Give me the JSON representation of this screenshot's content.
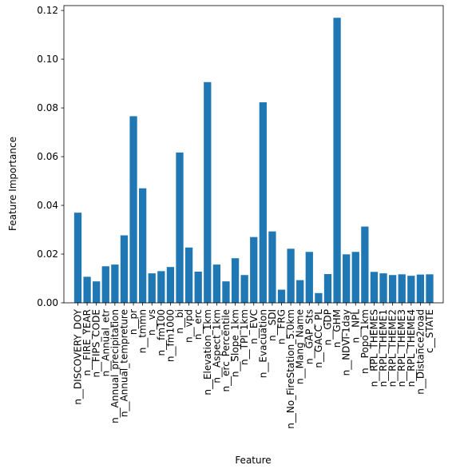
{
  "chart_data": {
    "type": "bar",
    "title": "",
    "xlabel": "Feature",
    "ylabel": "Feature Importance",
    "ylim": [
      0,
      0.122
    ],
    "yticks": [
      "0.00",
      "0.02",
      "0.04",
      "0.06",
      "0.08",
      "0.10",
      "0.12"
    ],
    "bar_color": "#1f77b4",
    "grid": false,
    "categories": [
      "n__DISCOVERY_DOY",
      "n__FIRE_YEAR",
      "n__FIPS_CODE",
      "n__Annual_etr",
      "n__Annual_precipitation",
      "n__Annual_tempreture",
      "n__pr",
      "n__tmmn",
      "n__vs",
      "n__fm100",
      "n__fm1000",
      "n__bi",
      "n__vpd",
      "n__erc",
      "n__Elevation_1km",
      "n__Aspect_1km",
      "n__erc_Percentile",
      "n__Slope_1km",
      "n__TPI_1km",
      "n__EVC",
      "n__Evacuation",
      "n__SDI",
      "n__FRG",
      "n__No_FireStation_5.0km",
      "n__Mang_Name",
      "n__GAP_Sts",
      "n__GACC_PL",
      "n__GDP",
      "n__GHM",
      "n__NDVI-1day",
      "n__NPL",
      "n__Popo_1km",
      "n__RPL_THEMES",
      "n__RPL_THEME1",
      "n__RPL_THEME2",
      "n__RPL_THEME3",
      "n__RPL_THEME4",
      "n__Distance2road",
      "c__STATE"
    ],
    "values": [
      0.037,
      0.0107,
      0.0088,
      0.015,
      0.0157,
      0.0277,
      0.0766,
      0.047,
      0.0121,
      0.013,
      0.0147,
      0.0617,
      0.0227,
      0.0128,
      0.0906,
      0.0157,
      0.0088,
      0.0183,
      0.0114,
      0.027,
      0.0823,
      0.0293,
      0.0054,
      0.0222,
      0.0093,
      0.0209,
      0.004,
      0.0118,
      0.117,
      0.0199,
      0.0209,
      0.0313,
      0.0127,
      0.0121,
      0.0114,
      0.0117,
      0.0111,
      0.0116,
      0.0117
    ]
  }
}
